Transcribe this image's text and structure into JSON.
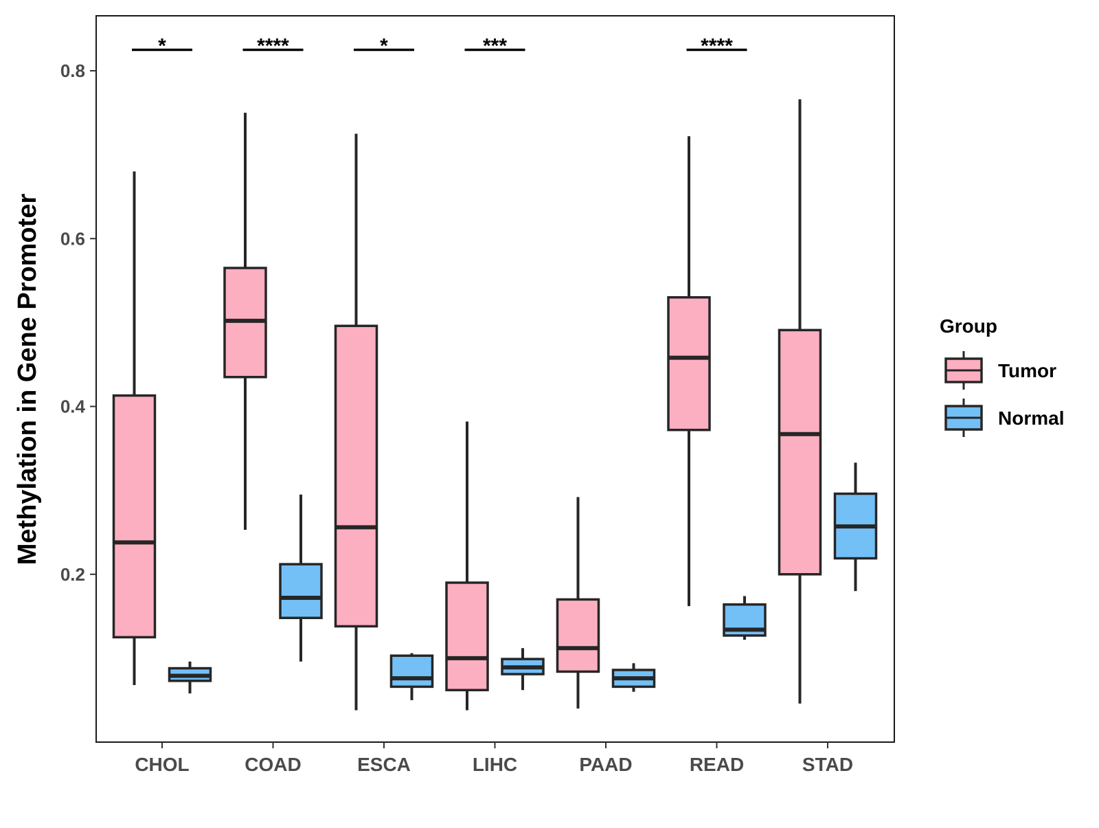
{
  "chart_data": {
    "type": "boxplot",
    "ylabel": "Methylation in Gene Promoter",
    "xlabel": "",
    "ylim": [
      0.0,
      0.87
    ],
    "yticks": [
      0.2,
      0.4,
      0.6,
      0.8
    ],
    "ytick_labels": [
      "0.2",
      "0.4",
      "0.6",
      "0.8"
    ],
    "categories": [
      "CHOL",
      "COAD",
      "ESCA",
      "LIHC",
      "PAAD",
      "READ",
      "STAD"
    ],
    "legend": {
      "title": "Group",
      "position": "right",
      "entries": [
        {
          "name": "Tumor",
          "color": "#FBAFC1"
        },
        {
          "name": "Normal",
          "color": "#73C0F7"
        }
      ]
    },
    "series": [
      {
        "name": "Tumor",
        "color": "#FBAFC1",
        "boxes": [
          {
            "min": 0.068,
            "q1": 0.125,
            "median": 0.238,
            "q3": 0.413,
            "max": 0.68
          },
          {
            "min": 0.253,
            "q1": 0.435,
            "median": 0.502,
            "q3": 0.565,
            "max": 0.75
          },
          {
            "min": 0.038,
            "q1": 0.138,
            "median": 0.256,
            "q3": 0.496,
            "max": 0.725
          },
          {
            "min": 0.038,
            "q1": 0.062,
            "median": 0.1,
            "q3": 0.19,
            "max": 0.382
          },
          {
            "min": 0.04,
            "q1": 0.084,
            "median": 0.112,
            "q3": 0.17,
            "max": 0.292
          },
          {
            "min": 0.162,
            "q1": 0.372,
            "median": 0.458,
            "q3": 0.53,
            "max": 0.722
          },
          {
            "min": 0.046,
            "q1": 0.2,
            "median": 0.367,
            "q3": 0.491,
            "max": 0.766
          }
        ]
      },
      {
        "name": "Normal",
        "color": "#73C0F7",
        "boxes": [
          {
            "min": 0.058,
            "q1": 0.073,
            "median": 0.079,
            "q3": 0.088,
            "max": 0.096
          },
          {
            "min": 0.096,
            "q1": 0.148,
            "median": 0.172,
            "q3": 0.212,
            "max": 0.295
          },
          {
            "min": 0.05,
            "q1": 0.066,
            "median": 0.076,
            "q3": 0.103,
            "max": 0.106
          },
          {
            "min": 0.062,
            "q1": 0.081,
            "median": 0.089,
            "q3": 0.099,
            "max": 0.112
          },
          {
            "min": 0.06,
            "q1": 0.066,
            "median": 0.076,
            "q3": 0.086,
            "max": 0.094
          },
          {
            "min": 0.122,
            "q1": 0.127,
            "median": 0.134,
            "q3": 0.164,
            "max": 0.174
          },
          {
            "min": 0.18,
            "q1": 0.219,
            "median": 0.257,
            "q3": 0.296,
            "max": 0.333
          }
        ]
      }
    ],
    "annotations": [
      {
        "category": "CHOL",
        "label": "*",
        "y": 0.825
      },
      {
        "category": "COAD",
        "label": "****",
        "y": 0.825
      },
      {
        "category": "ESCA",
        "label": "*",
        "y": 0.825
      },
      {
        "category": "LIHC",
        "label": "***",
        "y": 0.825
      },
      {
        "category": "READ",
        "label": "****",
        "y": 0.825
      }
    ]
  }
}
